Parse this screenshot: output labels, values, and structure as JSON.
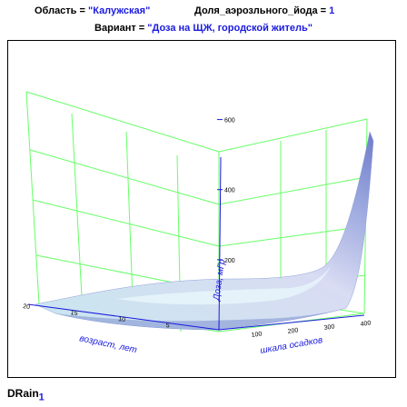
{
  "header": {
    "region_label": "Область = ",
    "region_value": "\"Калужская\"",
    "share_label": "Доля_аэрозльного_йода = ",
    "share_value": "1",
    "variant_label": "Вариант = ",
    "variant_value": "\"Доза на ЩЖ, городской житель\""
  },
  "footer": {
    "name": "DRain",
    "subscript": "1"
  },
  "colors": {
    "grid": "#66ff66",
    "axis": "#1a1adf",
    "surface": "#a8b4e8",
    "header_value": "#1a1adf"
  },
  "chart_data": {
    "type": "surface3d",
    "x_axis": {
      "label": "возраст, лет",
      "ticks": [
        20,
        15,
        10,
        5
      ],
      "range": [
        0,
        20
      ]
    },
    "y_axis": {
      "label": "шкала осадков",
      "ticks": [
        100,
        200,
        300,
        400
      ],
      "range": [
        0,
        400
      ]
    },
    "z_axis": {
      "label": "Доза, мГр",
      "ticks": [
        200,
        400,
        600
      ],
      "range": [
        0,
        700
      ]
    },
    "grid": true,
    "surface_profile_along_rain": {
      "rain": [
        0,
        100,
        200,
        300,
        350,
        380,
        400
      ],
      "dose_at_age_0": [
        20,
        30,
        45,
        90,
        200,
        420,
        670
      ],
      "dose_at_age_20": [
        5,
        8,
        12,
        20,
        35,
        60,
        90
      ]
    }
  }
}
